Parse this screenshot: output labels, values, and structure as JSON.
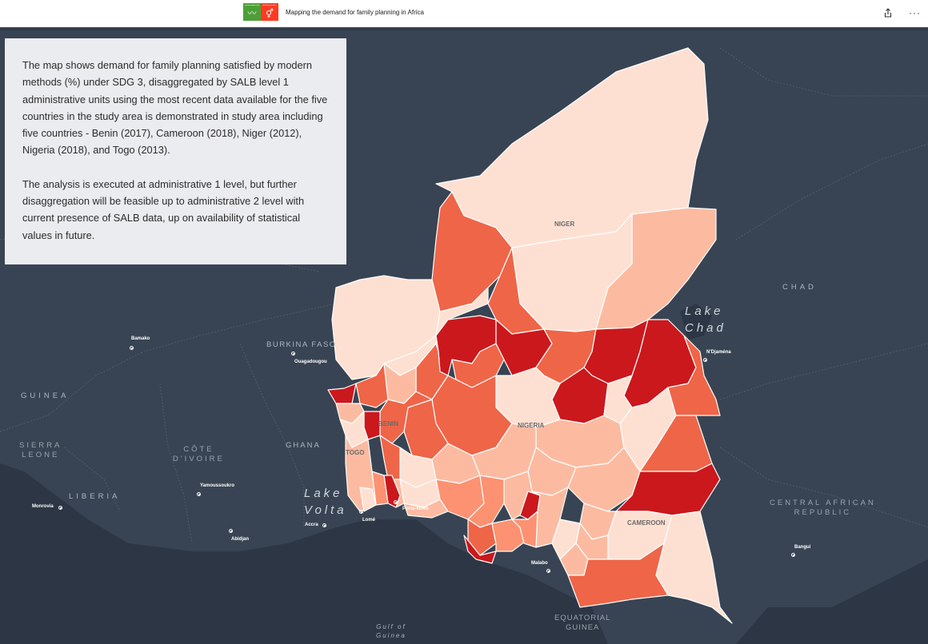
{
  "header": {
    "title": "Mapping the demand for family planning in Africa",
    "sdg3_label": "GOOD HEALTH AND WELL-BEING",
    "sdg5_label": "GENDER EQUALITY",
    "share_icon": "share-icon",
    "more_icon": "more-icon",
    "more_glyph": "···"
  },
  "info_panel": {
    "paragraph1": "The map shows demand for family planning satisfied by modern methods (%) under SDG 3, disaggregated by SALB level 1 administrative units using the most recent data available for the five countries in the study area is demonstrated in study area including five countries - Benin (2017), Cameroon (2018), Niger (2012), Nigeria (2018), and Togo (2013).",
    "paragraph2": "The analysis is executed at administrative 1 level, but further disaggregation will be feasible up to administrative 2 level with current presence of SALB data, up on availability of statistical values in future."
  },
  "map": {
    "colors": {
      "ocean": "#2f3a48",
      "land": "#3a4656",
      "class1": "#fee0d2",
      "class2": "#fcbba1",
      "class3": "#fc9272",
      "class4": "#ef6548",
      "class5": "#cb181d",
      "border": "#ffffff"
    },
    "study_area_labels": {
      "niger": "NIGER",
      "nigeria": "NIGERIA",
      "benin": "BENIN",
      "togo": "TOGO",
      "cameroon": "CAMEROON"
    },
    "basemap_countries": {
      "guinea": "GUINEA",
      "sierra_leone": "SIERRA\nLEONE",
      "liberia": "LIBERIA",
      "cote_divoire": "CÔTE\nD'IVOIRE",
      "ghana": "GHANA",
      "burkina_faso": "BURKINA FASO",
      "chad": "CHAD",
      "car": "CENTRAL AFRICAN\nREPUBLIC",
      "equatorial_guinea": "EQUATORIAL\nGUINEA"
    },
    "water": {
      "lake_chad": "Lake\nChad",
      "lake_volta": "Lake\nVolta",
      "gulf_of_guinea": "Gulf of\nGuinea"
    },
    "cities": {
      "bamako": "Bamako",
      "ouagadougou": "Ouagadougou",
      "yamoussoukro": "Yamoussoukro",
      "monrovia": "Monrovia",
      "accra": "Accra",
      "abidjan": "Abidjan",
      "lome": "Lomé",
      "porto_novo": "Porto-Novo",
      "ndjamena": "N'Djaména",
      "bangui": "Bangui",
      "malabo": "Malabo"
    }
  }
}
